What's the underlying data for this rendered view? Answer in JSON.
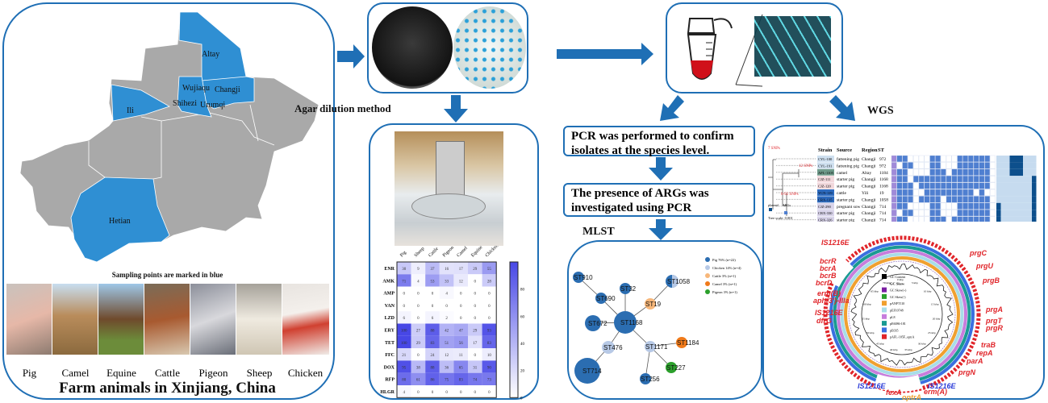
{
  "map": {
    "regions": [
      "Altay",
      "Changji",
      "Wujiaqu",
      "Urumqi",
      "Shihezi",
      "Ili",
      "Hetian"
    ],
    "caption": "Sampling points are marked in blue",
    "sampled_color": "#2f8fd3",
    "unsampled_color": "#a9a9a9"
  },
  "animals": [
    "Pig",
    "Camel",
    "Equine",
    "Cattle",
    "Pigeon",
    "Sheep",
    "Chicken"
  ],
  "left_title": "Farm animals in Xinjiang, China",
  "agar_label": "Agar dilution method",
  "pcr_box_1": "PCR was performed to confirm isolates at the species level.",
  "pcr_box_2": "The presence of ARGs was investigated using PCR",
  "mlst_label": "MLST",
  "wgs_label": "WGS",
  "accent": "#1f6fb5",
  "heatmap": {
    "columns": [
      "Pig",
      "Sheep",
      "Cattle",
      "Pigeon",
      "Camel",
      "Equine",
      "Chicken"
    ],
    "rows": [
      "ENR",
      "AMK",
      "AMP",
      "VAN",
      "LZD",
      "ERY",
      "TET",
      "FFC",
      "DOX",
      "RFP",
      "HLGR"
    ],
    "values": [
      [
        30,
        9,
        37,
        16,
        17,
        29,
        55
      ],
      [
        71,
        4,
        53,
        33,
        12,
        0,
        28
      ],
      [
        0,
        0,
        0,
        4,
        0,
        0,
        0
      ],
      [
        0,
        0,
        0,
        0,
        0,
        0,
        0
      ],
      [
        6,
        0,
        6,
        2,
        0,
        0,
        0
      ],
      [
        100,
        27,
        88,
        42,
        47,
        29,
        93
      ],
      [
        100,
        29,
        83,
        51,
        56,
        17,
        83
      ],
      [
        21,
        0,
        24,
        12,
        11,
        0,
        10
      ],
      [
        95,
        38,
        88,
        36,
        65,
        31,
        90
      ],
      [
        80,
        61,
        86,
        75,
        83,
        74,
        73
      ],
      [
        4,
        0,
        0,
        0,
        0,
        0,
        0
      ]
    ],
    "colorbar_ticks": [
      "0",
      "20",
      "40",
      "60",
      "80"
    ],
    "color_max": "#4747e6"
  },
  "mlst": {
    "legend": [
      {
        "label": "Pig 76% (n=22)",
        "color": "#2b6db1"
      },
      {
        "label": "Chicken 14% (n=4)",
        "color": "#b7c9e6"
      },
      {
        "label": "Cattle 3% (n=1)",
        "color": "#f7b77a"
      },
      {
        "label": "Camel 3% (n=1)",
        "color": "#f07a1a"
      },
      {
        "label": "Pigeon 3% (n=1)",
        "color": "#2ca02c"
      }
    ],
    "nodes": [
      {
        "st": "ST910",
        "host": "Pig"
      },
      {
        "st": "ST690",
        "host": "Pig"
      },
      {
        "st": "ST32",
        "host": "Pig"
      },
      {
        "st": "ST19",
        "host": "Cattle"
      },
      {
        "st": "ST1058",
        "host": "Pig"
      },
      {
        "st": "ST672",
        "host": "Pig"
      },
      {
        "st": "ST1168",
        "host": "Pig"
      },
      {
        "st": "ST476",
        "host": "Chicken"
      },
      {
        "st": "ST1171",
        "host": "Chicken"
      },
      {
        "st": "ST1184",
        "host": "Camel"
      },
      {
        "st": "ST714",
        "host": "Pig"
      },
      {
        "st": "ST227",
        "host": "Pigeon"
      },
      {
        "st": "ST256",
        "host": "Pig"
      }
    ],
    "edges": [
      [
        "ST910",
        "ST690"
      ],
      [
        "ST690",
        "ST1168"
      ],
      [
        "ST32",
        "ST1168"
      ],
      [
        "ST19",
        "ST1168"
      ],
      [
        "ST19",
        "ST1058"
      ],
      [
        "ST672",
        "ST1168"
      ],
      [
        "ST476",
        "ST1168"
      ],
      [
        "ST476",
        "ST714"
      ],
      [
        "ST1171",
        "ST1168"
      ],
      [
        "ST1171",
        "ST1184"
      ],
      [
        "ST1171",
        "ST227"
      ],
      [
        "ST1171",
        "ST256"
      ]
    ]
  },
  "tree": {
    "headers": [
      "Strain",
      "Source",
      "Region",
      "ST"
    ],
    "rows": [
      [
        "CYL-100",
        "fattening pig",
        "Changji",
        "972"
      ],
      [
        "CYL-191",
        "fattening pig",
        "Changji",
        "972"
      ],
      [
        "AFL-1105",
        "camel",
        "Altay",
        "1184"
      ],
      [
        "CJZ-111",
        "starter pig",
        "Changji",
        "1168"
      ],
      [
        "CJZ-120",
        "starter pig",
        "Changji",
        "1168"
      ],
      [
        "YCN-119",
        "cattle",
        "Yili",
        "19"
      ],
      [
        "CRX-135",
        "starter pig",
        "Changji",
        "1058"
      ],
      [
        "CJZ-290",
        "pregnant sow",
        "Changji",
        "714"
      ],
      [
        "CRX-330",
        "starter pig",
        "Changji",
        "714"
      ],
      [
        "CRX-326",
        "starter pig",
        "Changji",
        "714"
      ],
      [
        "CRX-330",
        "starter pig",
        "Changji",
        "714"
      ],
      [
        "CRX-325",
        "starter pig",
        "Changji",
        "714"
      ]
    ],
    "snp_labels": [
      "7 SNPs",
      "12 SNPs",
      "0-92 SNPs"
    ],
    "legend_plasmid": "plasmid",
    "legend_args": "ARGs",
    "legend_vals": [
      "0",
      "1"
    ],
    "tree_scale": "Tree scale: 0.001"
  },
  "plasmid": {
    "legend": [
      {
        "label": "GC Content",
        "color": "#000000"
      },
      {
        "label": "GC Skew",
        "color": ""
      },
      {
        "label": "GC Skew(+)",
        "color": "#7b1fa2"
      },
      {
        "label": "GC Skew(-)",
        "color": "#2ca02c"
      },
      {
        "label": "pANPT110",
        "color": "#f0a030"
      },
      {
        "label": "pEF10748",
        "color": "#a8dde8"
      },
      {
        "label": "pL8",
        "color": "#c77ddc"
      },
      {
        "label": "pE6086-181",
        "color": "#1a9a93"
      },
      {
        "label": "pE035",
        "color": "#3a6fe0"
      },
      {
        "label": "pAFL-105F_optrA",
        "color": "#e0252a"
      }
    ],
    "gene_labels": [
      "IS1216E",
      "bcrR",
      "bcrA",
      "bcrB",
      "bcrD",
      "erm(B)",
      "aph(3')-IIIa",
      "IS1216E",
      "dfrG",
      "prgC",
      "prgU",
      "prgB",
      "prgA",
      "prgT",
      "prgR",
      "traB",
      "repA",
      "parA",
      "prgN",
      "IS1216E",
      "fexA",
      "optrA",
      "erm(A)",
      "IS1216E"
    ],
    "ring_ticks": [
      "0 kbp",
      "5 kbp",
      "10 kbp",
      "15 kbp",
      "20 kbp",
      "25 kbp",
      "30 kbp",
      "35 kbp",
      "40 kbp",
      "45 kbp",
      "50 kbp",
      "55 kbp",
      "60 kbp",
      "65 kbp",
      "70 kbp"
    ]
  }
}
